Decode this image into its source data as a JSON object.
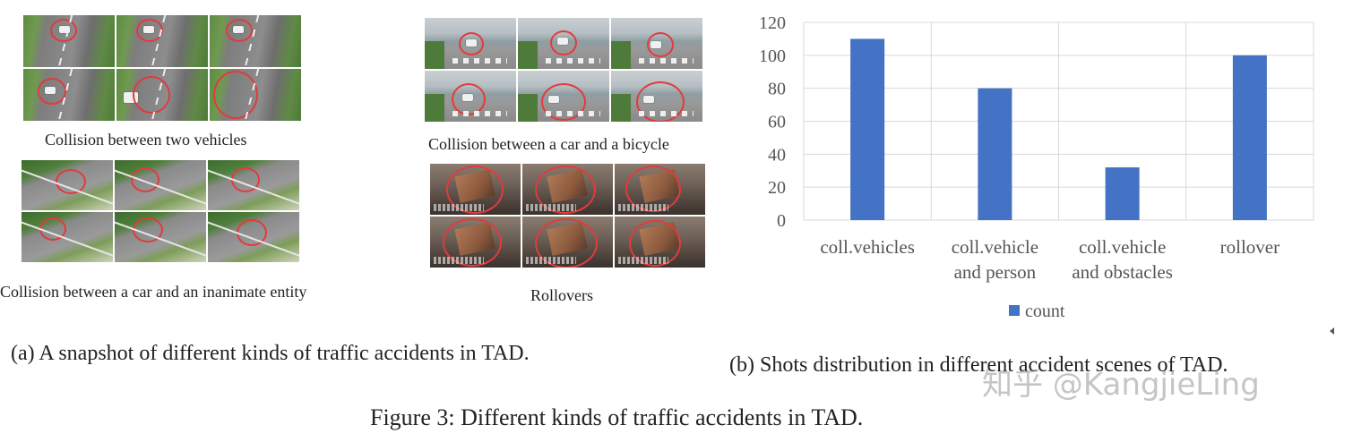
{
  "panel_a": {
    "labels": {
      "two_vehicles": "Collision between two vehicles",
      "car_bicycle": "Collision between a car and a bicycle",
      "car_inanimate": "Collision between a car and an inanimate entity",
      "rollovers": "Rollovers"
    },
    "caption": "(a) A snapshot of different kinds of traffic accidents in TAD."
  },
  "panel_b": {
    "caption": "(b) Shots distribution in different accident scenes of TAD."
  },
  "figure_caption": "Figure 3: Different kinds of traffic accidents in TAD.",
  "watermark": "知乎 @KangjieLing",
  "chart_data": {
    "type": "bar",
    "categories": [
      [
        "coll.vehicles"
      ],
      [
        "coll.vehicle",
        "and person"
      ],
      [
        "coll.vehicle",
        "and obstacles"
      ],
      [
        "rollover"
      ]
    ],
    "series": [
      {
        "name": "count",
        "values": [
          110,
          80,
          32,
          100
        ],
        "color": "#4472c4"
      }
    ],
    "ylim": [
      0,
      120
    ],
    "yticks": [
      0,
      20,
      40,
      60,
      80,
      100,
      120
    ],
    "grid": true,
    "legend": "bottom",
    "title": "",
    "xlabel": "",
    "ylabel": ""
  }
}
